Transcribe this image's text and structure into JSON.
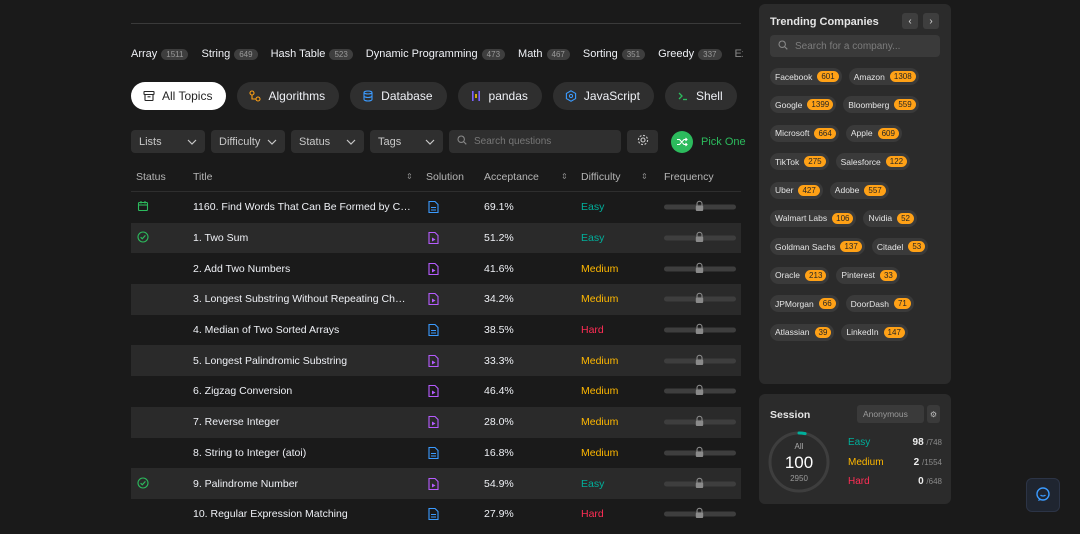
{
  "topic_tags": [
    {
      "label": "Array",
      "count": "1511"
    },
    {
      "label": "String",
      "count": "649"
    },
    {
      "label": "Hash Table",
      "count": "523"
    },
    {
      "label": "Dynamic Programming",
      "count": "473"
    },
    {
      "label": "Math",
      "count": "467"
    },
    {
      "label": "Sorting",
      "count": "351"
    },
    {
      "label": "Greedy",
      "count": "337"
    }
  ],
  "expand_label": "Expand",
  "categories": [
    {
      "label": "All Topics",
      "icon": "stack-icon"
    },
    {
      "label": "Algorithms",
      "icon": "algorithms-icon"
    },
    {
      "label": "Database",
      "icon": "database-icon"
    },
    {
      "label": "pandas",
      "icon": "pandas-icon"
    },
    {
      "label": "JavaScript",
      "icon": "javascript-icon"
    },
    {
      "label": "Shell",
      "icon": "terminal-icon"
    }
  ],
  "categories_more": "»",
  "filters": {
    "lists": "Lists",
    "difficulty": "Difficulty",
    "status": "Status",
    "tags": "Tags",
    "search_placeholder": "Search questions",
    "pick_one": "Pick One"
  },
  "table": {
    "headers": {
      "status": "Status",
      "title": "Title",
      "solution": "Solution",
      "acceptance": "Acceptance",
      "difficulty": "Difficulty",
      "frequency": "Frequency"
    },
    "rows": [
      {
        "status": "calendar",
        "title": "1160. Find Words That Can Be Formed by Characters",
        "solution": "article",
        "acceptance": "69.1%",
        "difficulty": "Easy"
      },
      {
        "status": "solved",
        "title": "1. Two Sum",
        "solution": "video",
        "acceptance": "51.2%",
        "difficulty": "Easy"
      },
      {
        "status": "",
        "title": "2. Add Two Numbers",
        "solution": "video",
        "acceptance": "41.6%",
        "difficulty": "Medium"
      },
      {
        "status": "",
        "title": "3. Longest Substring Without Repeating Characters",
        "solution": "video",
        "acceptance": "34.2%",
        "difficulty": "Medium"
      },
      {
        "status": "",
        "title": "4. Median of Two Sorted Arrays",
        "solution": "article",
        "acceptance": "38.5%",
        "difficulty": "Hard"
      },
      {
        "status": "",
        "title": "5. Longest Palindromic Substring",
        "solution": "video",
        "acceptance": "33.3%",
        "difficulty": "Medium"
      },
      {
        "status": "",
        "title": "6. Zigzag Conversion",
        "solution": "video",
        "acceptance": "46.4%",
        "difficulty": "Medium"
      },
      {
        "status": "",
        "title": "7. Reverse Integer",
        "solution": "video",
        "acceptance": "28.0%",
        "difficulty": "Medium"
      },
      {
        "status": "",
        "title": "8. String to Integer (atoi)",
        "solution": "article",
        "acceptance": "16.8%",
        "difficulty": "Medium"
      },
      {
        "status": "solved",
        "title": "9. Palindrome Number",
        "solution": "video",
        "acceptance": "54.9%",
        "difficulty": "Easy"
      },
      {
        "status": "",
        "title": "10. Regular Expression Matching",
        "solution": "article",
        "acceptance": "27.9%",
        "difficulty": "Hard"
      }
    ]
  },
  "trending": {
    "title": "Trending Companies",
    "search_placeholder": "Search for a company...",
    "companies": [
      {
        "name": "Facebook",
        "count": "601"
      },
      {
        "name": "Amazon",
        "count": "1308"
      },
      {
        "name": "Google",
        "count": "1399"
      },
      {
        "name": "Bloomberg",
        "count": "559"
      },
      {
        "name": "Microsoft",
        "count": "664"
      },
      {
        "name": "Apple",
        "count": "609"
      },
      {
        "name": "TikTok",
        "count": "275"
      },
      {
        "name": "Salesforce",
        "count": "122"
      },
      {
        "name": "Uber",
        "count": "427"
      },
      {
        "name": "Adobe",
        "count": "557"
      },
      {
        "name": "Walmart Labs",
        "count": "106"
      },
      {
        "name": "Nvidia",
        "count": "52"
      },
      {
        "name": "Goldman Sachs",
        "count": "137"
      },
      {
        "name": "Citadel",
        "count": "53"
      },
      {
        "name": "Oracle",
        "count": "213"
      },
      {
        "name": "Pinterest",
        "count": "33"
      },
      {
        "name": "JPMorgan",
        "count": "66"
      },
      {
        "name": "DoorDash",
        "count": "71"
      },
      {
        "name": "Atlassian",
        "count": "39"
      },
      {
        "name": "LinkedIn",
        "count": "147"
      }
    ]
  },
  "session": {
    "title": "Session",
    "selector": "Anonymous",
    "all_label": "All",
    "solved": "100",
    "total": "2950",
    "solved_fraction": 0.0339,
    "easy": {
      "label": "Easy",
      "solved": "98",
      "total": "/748"
    },
    "medium": {
      "label": "Medium",
      "solved": "2",
      "total": "/1554"
    },
    "hard": {
      "label": "Hard",
      "solved": "0",
      "total": "/648"
    }
  },
  "colors": {
    "easy": "#00af9b",
    "medium": "#ffb800",
    "hard": "#ff2d55",
    "accent": "#2cbb5d",
    "brand": "#ffa116"
  }
}
